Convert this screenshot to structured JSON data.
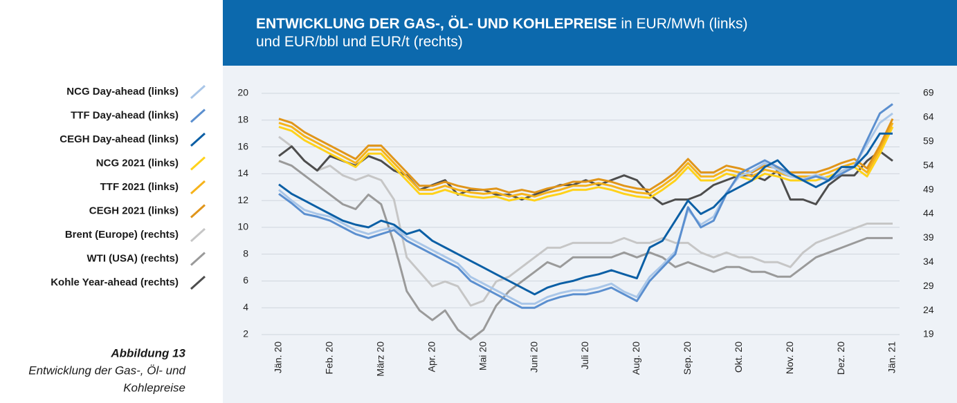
{
  "chart_data": {
    "type": "line",
    "title": "ENTWICKLUNG DER GAS-, ÖL- UND KOHLEPREISE",
    "subtitle_lines": [
      "in EUR/MWh (links)",
      "und EUR/bbl und EUR/t (rechts)"
    ],
    "categories": [
      "Jän. 20",
      null,
      null,
      null,
      "Feb. 20",
      null,
      null,
      null,
      "März 20",
      null,
      null,
      null,
      "Apr. 20",
      null,
      null,
      null,
      "Mai 20",
      null,
      null,
      null,
      "Juni 20",
      null,
      null,
      null,
      "Juli 20",
      null,
      null,
      null,
      "Aug. 20",
      null,
      null,
      null,
      "Sep. 20",
      null,
      null,
      null,
      "Okt. 20",
      null,
      null,
      null,
      "Nov. 20",
      null,
      null,
      null,
      "Dez. 20",
      null,
      null,
      null,
      "Jän. 21"
    ],
    "ylim": [
      2,
      20
    ],
    "yticks": [
      2,
      4,
      6,
      8,
      10,
      12,
      14,
      16,
      18,
      20
    ],
    "y2lim": [
      19,
      69
    ],
    "y2ticks": [
      19,
      24,
      29,
      34,
      39,
      44,
      49,
      54,
      59,
      64,
      69
    ],
    "grid": true,
    "series": [
      {
        "name": "NCG Day-ahead (links)",
        "color": "#a9c6e8",
        "values": [
          12.8,
          12,
          11.3,
          11,
          10.8,
          10.3,
          9.8,
          9.5,
          9.8,
          10,
          9.3,
          8.8,
          8.3,
          7.8,
          7.3,
          6.3,
          5.8,
          5.3,
          4.8,
          4.3,
          4.3,
          4.8,
          5.1,
          5.3,
          5.3,
          5.5,
          5.8,
          5.2,
          4.8,
          6.3,
          7.2,
          8.2,
          11.3,
          10.2,
          10.8,
          12.6,
          13.8,
          14.2,
          14.8,
          14.3,
          13.8,
          13.6,
          13.9,
          13.6,
          14.2,
          14.6,
          16.2,
          17.8,
          18.5
        ]
      },
      {
        "name": "TTF Day-ahead (links)",
        "color": "#5b8fcf",
        "values": [
          12.5,
          11.8,
          11,
          10.8,
          10.5,
          10,
          9.5,
          9.2,
          9.5,
          9.8,
          9,
          8.5,
          8,
          7.5,
          7,
          6,
          5.5,
          5,
          4.5,
          4,
          4,
          4.5,
          4.8,
          5,
          5,
          5.2,
          5.5,
          5,
          4.5,
          6,
          7,
          8,
          11.5,
          10,
          10.5,
          12.5,
          14,
          14.5,
          15,
          14.5,
          14,
          13.5,
          13.8,
          13.5,
          14,
          14.5,
          16.5,
          18.5,
          19.2
        ]
      },
      {
        "name": "CEGH Day-ahead (links)",
        "color": "#0b5fa5",
        "values": [
          13.2,
          12.5,
          12,
          11.5,
          11,
          10.5,
          10.2,
          10,
          10.5,
          10.2,
          9.5,
          9.8,
          9,
          8.5,
          8,
          7.5,
          7,
          6.5,
          6,
          5.5,
          5,
          5.5,
          5.8,
          6,
          6.3,
          6.5,
          6.8,
          6.5,
          6.2,
          8.5,
          9,
          10.5,
          12,
          11,
          11.5,
          12.5,
          13,
          13.5,
          14.5,
          15,
          14,
          13.5,
          13,
          13.5,
          14.5,
          14.5,
          15.5,
          17,
          17
        ]
      },
      {
        "name": "NCG 2021 (links)",
        "color": "#ffd21a",
        "values": [
          17.5,
          17.2,
          16.5,
          16,
          15.5,
          15,
          14.5,
          15.5,
          15.5,
          14.5,
          13.5,
          12.5,
          12.5,
          12.8,
          12.5,
          12.3,
          12.2,
          12.3,
          12,
          12.2,
          12,
          12.3,
          12.5,
          12.8,
          12.8,
          13,
          12.8,
          12.5,
          12.3,
          12.2,
          12.8,
          13.5,
          14.5,
          13.5,
          13.5,
          14,
          13.8,
          13.5,
          14,
          13.8,
          13.5,
          13.5,
          13.5,
          13.8,
          14.2,
          14.5,
          13.8,
          15.5,
          17.5
        ]
      },
      {
        "name": "TTF 2021 (links)",
        "color": "#f6b31b",
        "values": [
          17.8,
          17.5,
          16.8,
          16.3,
          15.8,
          15.3,
          14.8,
          15.8,
          15.8,
          14.8,
          13.8,
          12.8,
          12.8,
          13.1,
          12.8,
          12.6,
          12.5,
          12.6,
          12.3,
          12.5,
          12.3,
          12.6,
          12.8,
          13.1,
          13.1,
          13.3,
          13.1,
          12.8,
          12.6,
          12.5,
          13.1,
          13.8,
          14.8,
          13.8,
          13.8,
          14.3,
          14.1,
          13.8,
          14.3,
          14.1,
          13.8,
          13.8,
          13.8,
          14.1,
          14.5,
          14.8,
          14.1,
          15.8,
          17.8
        ]
      },
      {
        "name": "CEGH 2021 (links)",
        "color": "#e0951a",
        "values": [
          18.1,
          17.8,
          17.1,
          16.6,
          16.1,
          15.6,
          15.1,
          16.1,
          16.1,
          15.1,
          14.1,
          13.1,
          13.1,
          13.4,
          13.1,
          12.9,
          12.8,
          12.9,
          12.6,
          12.8,
          12.6,
          12.9,
          13.1,
          13.4,
          13.4,
          13.6,
          13.4,
          13.1,
          12.9,
          12.8,
          13.4,
          14.1,
          15.1,
          14.1,
          14.1,
          14.6,
          14.4,
          14.1,
          14.6,
          14.4,
          14.1,
          14.1,
          14.1,
          14.4,
          14.8,
          15.1,
          14.4,
          16.1,
          18.1
        ]
      },
      {
        "name": "Brent (Europe) (rechts)",
        "color": "#c6c6c6",
        "axis": "y2",
        "values": [
          60,
          58,
          55,
          53,
          54,
          52,
          51,
          52,
          51,
          47,
          35,
          32,
          29,
          30,
          29,
          25,
          26,
          30,
          31,
          33,
          35,
          37,
          37,
          38,
          38,
          38,
          38,
          39,
          38,
          38,
          39,
          38,
          38,
          36,
          35,
          36,
          35,
          35,
          34,
          34,
          33,
          36,
          38,
          39,
          40,
          41,
          42,
          42,
          42
        ]
      },
      {
        "name": "WTI (USA) (rechts)",
        "color": "#9a9a9a",
        "axis": "y2",
        "values": [
          55,
          54,
          52,
          50,
          48,
          46,
          45,
          48,
          46,
          38,
          28,
          24,
          22,
          24,
          20,
          18,
          20,
          25,
          28,
          30,
          32,
          34,
          33,
          35,
          35,
          35,
          35,
          36,
          35,
          36,
          35,
          33,
          34,
          33,
          32,
          33,
          33,
          32,
          32,
          31,
          31,
          33,
          35,
          36,
          37,
          38,
          39,
          39,
          39
        ]
      },
      {
        "name": "Kohle Year-ahead (rechts)",
        "color": "#4d4d4d",
        "axis": "y2",
        "values": [
          56,
          58,
          55,
          53,
          56,
          55,
          54,
          56,
          55,
          53,
          52,
          49,
          50,
          51,
          48,
          49,
          49,
          48,
          48,
          47,
          48,
          49,
          50,
          50,
          51,
          50,
          51,
          52,
          51,
          48,
          46,
          47,
          47,
          48,
          50,
          51,
          52,
          52,
          51,
          53,
          47,
          47,
          46,
          50,
          52,
          52,
          55,
          57,
          55
        ]
      }
    ]
  },
  "caption": {
    "label": "Abbildung 13",
    "lines": [
      "Entwicklung der Gas-, Öl- und",
      "Kohlepreise"
    ]
  }
}
